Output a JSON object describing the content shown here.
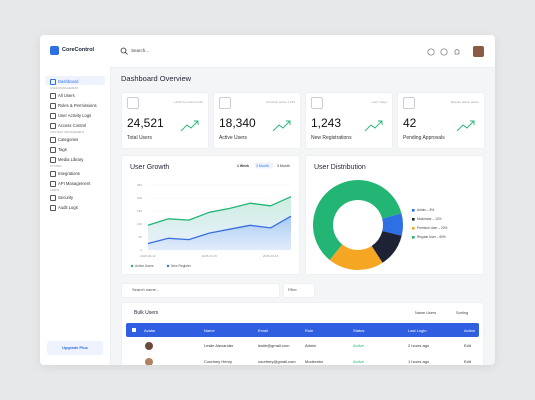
{
  "sidebar": {
    "brand": "CoreControl",
    "items": [
      "Dashboard"
    ],
    "sections": [
      {
        "title": "USER MANAGEMENT",
        "items": [
          "All Users",
          "Roles & Permissions",
          "User Activity Logs",
          "Access Control"
        ]
      },
      {
        "title": "CONTENT MANAGEMENT",
        "items": [
          "Categories",
          "Tags",
          "Media Library"
        ]
      },
      {
        "title": "SYSTEM",
        "items": [
          "Integrations",
          "API Management"
        ]
      },
      {
        "title": "ADMIN",
        "items": [
          "Security",
          "Audit Logs"
        ]
      }
    ],
    "upgrade": "Upgrade Plus"
  },
  "topbar": {
    "search": "Search..."
  },
  "page_title": "Dashboard Overview",
  "stats": [
    {
      "note": "+12% from last month",
      "value": "24,521",
      "label": "Total Users"
    },
    {
      "note": "Currently active 1,234",
      "value": "18,340",
      "label": "Active Users"
    },
    {
      "note": "Last 7 days",
      "value": "1,243",
      "label": "New Registrations"
    },
    {
      "note": "Require admin action",
      "value": "42",
      "label": "Pending Approvals"
    }
  ],
  "user_growth": {
    "type": "line",
    "title": "User Growth",
    "tabs": [
      "1 Week",
      "1 Month",
      "3 Month"
    ],
    "categories": [
      "2025-03-12",
      null,
      null,
      "2025-03-15",
      null,
      null,
      "2025-03-18",
      null
    ],
    "series": [
      {
        "name": "Active Users",
        "color": "#22b573",
        "values": [
          95,
          120,
          115,
          145,
          160,
          180,
          170,
          205
        ]
      },
      {
        "name": "New Register",
        "color": "#3b6fe0",
        "values": [
          25,
          45,
          40,
          65,
          80,
          95,
          85,
          130
        ]
      }
    ],
    "ylim": [
      0,
      250
    ],
    "yticks": [
      0,
      50,
      100,
      150,
      200,
      250
    ],
    "grid": true
  },
  "user_distribution": {
    "type": "pie",
    "title": "User Distribution",
    "categories": [
      "Admin",
      "Moderator",
      "Premium User",
      "Regular User"
    ],
    "values": [
      8,
      12,
      20,
      60
    ],
    "value_labels": [
      "8%",
      "12%",
      "20%",
      "60%"
    ],
    "colors": [
      "#2f6fe4",
      "#1e2235",
      "#f5a623",
      "#22b573"
    ]
  },
  "table": {
    "search": "Search name...",
    "filter": "Filter",
    "title": "Bulk Users",
    "sort_by": "Name Users",
    "sort": "Sorting",
    "columns": [
      "Avatar",
      "Name",
      "Email",
      "Role",
      "Status",
      "Last Login",
      "Action"
    ],
    "rows": [
      [
        "Leslie Alexander",
        "leslie@gmail.com",
        "Admin",
        "Active",
        "2 hours ago",
        "Edit"
      ],
      [
        "Courtney Henry",
        "courtney@gmail.com",
        "Moderator",
        "Active",
        "1 hours ago",
        "Edit"
      ]
    ]
  }
}
